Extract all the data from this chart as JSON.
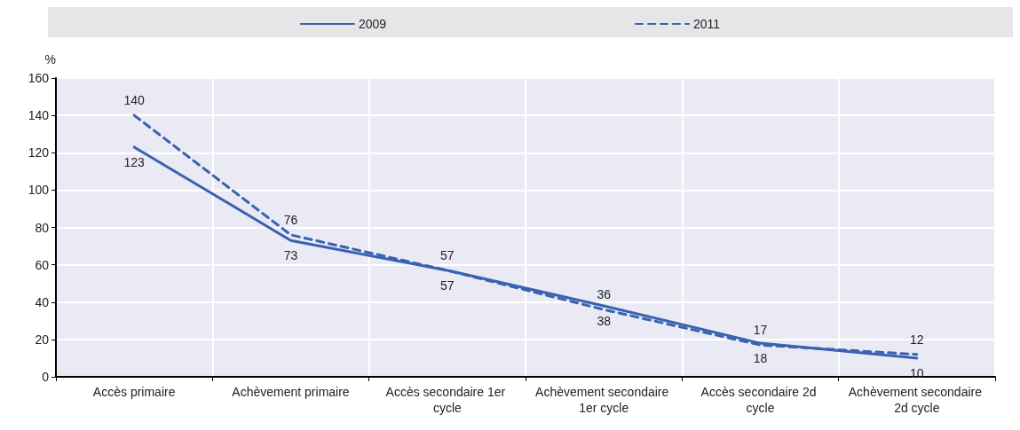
{
  "chart_data": {
    "type": "line",
    "ylabel": "%",
    "categories": [
      "Accès primaire",
      "Achèvement primaire",
      "Accès secondaire 1er cycle",
      "Achèvement secondaire 1er cycle",
      "Accès secondaire 2d cycle",
      "Achèvement secondaire 2d cycle"
    ],
    "series": [
      {
        "name": "2009",
        "color": "#3a62b0",
        "line_style": "solid",
        "values": [
          123,
          73,
          57,
          38,
          18,
          10
        ]
      },
      {
        "name": "2011",
        "color": "#3a62b0",
        "line_style": "dashed",
        "values": [
          140,
          76,
          57,
          36,
          17,
          12
        ]
      }
    ],
    "ylim": [
      0,
      160
    ],
    "yticks": [
      0,
      20,
      40,
      60,
      80,
      100,
      120,
      140,
      160
    ],
    "grid": true,
    "legend": "top",
    "marker": "none",
    "data_labels": true
  }
}
